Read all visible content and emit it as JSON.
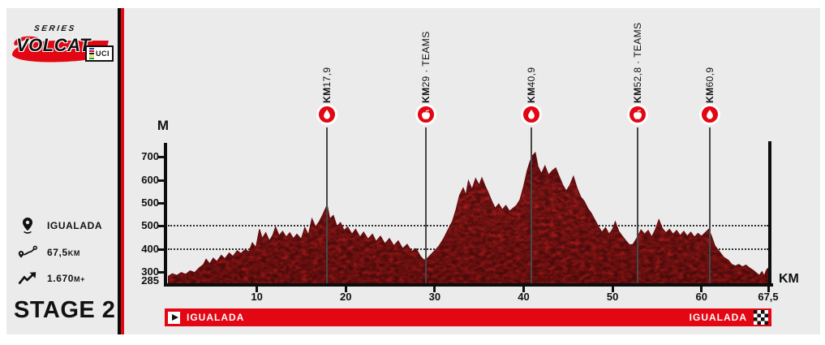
{
  "logo": {
    "series": "SERIES",
    "name": "VOLCAT",
    "uci": "UCI",
    "uci_stripe_colors": [
      "#1d4f9f",
      "#e3001b",
      "#111111",
      "#ffd500",
      "#189b4a"
    ]
  },
  "sidebar": {
    "stats": [
      {
        "icon": "location-pin-icon",
        "value": "IGUALADA",
        "unit": ""
      },
      {
        "icon": "route-distance-icon",
        "value": "67,5",
        "unit": "KM"
      },
      {
        "icon": "elevation-gain-icon",
        "value": "1.670",
        "unit": "M+"
      }
    ],
    "stage_label": "STAGE 2"
  },
  "chart_data": {
    "type": "area",
    "title": "VOLCAT Series Stage 2 road elevation profile",
    "xlabel": "KM",
    "ylabel": "M",
    "x_range": [
      0,
      67.5
    ],
    "x_ticks": [
      10,
      20,
      30,
      40,
      50,
      60,
      67.5
    ],
    "x_tick_labels": [
      "10",
      "20",
      "30",
      "40",
      "50",
      "60",
      "67,5"
    ],
    "y_tick_labels": [
      "700",
      "600",
      "500",
      "500",
      "400",
      "300"
    ],
    "y_base_label": "285",
    "dotted_gridline_label_indices": [
      3,
      4
    ],
    "grid": "two dotted horizontal reference lines",
    "legend": "none",
    "area_color": "#a81c1c",
    "marker_color": "#e30613",
    "markers": [
      {
        "km": 17.9,
        "label_bold": "KM",
        "label_rest": "17,9",
        "icon": "water-drop-icon"
      },
      {
        "km": 29,
        "label_bold": "KM",
        "label_rest": "29 · TEAMS",
        "icon": "apple-icon"
      },
      {
        "km": 40.9,
        "label_bold": "KM",
        "label_rest": "40,9",
        "icon": "water-drop-icon"
      },
      {
        "km": 52.8,
        "label_bold": "KM",
        "label_rest": "52,8 · TEAMS",
        "icon": "apple-icon"
      },
      {
        "km": 60.9,
        "label_bold": "KM",
        "label_rest": "60,9",
        "icon": "water-drop-icon"
      }
    ],
    "series": [
      {
        "name": "elevation_m_by_km",
        "points": [
          [
            0,
            308
          ],
          [
            0.5,
            318
          ],
          [
            1,
            312
          ],
          [
            1.5,
            322
          ],
          [
            2,
            316
          ],
          [
            2.5,
            328
          ],
          [
            3,
            322
          ],
          [
            3.5,
            338
          ],
          [
            4,
            350
          ],
          [
            4.3,
            368
          ],
          [
            4.7,
            352
          ],
          [
            5.1,
            372
          ],
          [
            5.5,
            360
          ],
          [
            6,
            382
          ],
          [
            6.4,
            370
          ],
          [
            6.9,
            390
          ],
          [
            7.3,
            378
          ],
          [
            7.8,
            398
          ],
          [
            8.2,
            388
          ],
          [
            8.7,
            402
          ],
          [
            9.1,
            394
          ],
          [
            9.5,
            425
          ],
          [
            9.9,
            408
          ],
          [
            10.3,
            472
          ],
          [
            10.6,
            440
          ],
          [
            11,
            460
          ],
          [
            11.4,
            432
          ],
          [
            11.8,
            452
          ],
          [
            12.1,
            480
          ],
          [
            12.5,
            450
          ],
          [
            12.9,
            465
          ],
          [
            13.3,
            445
          ],
          [
            13.7,
            460
          ],
          [
            14.1,
            440
          ],
          [
            14.5,
            455
          ],
          [
            15,
            438
          ],
          [
            15.4,
            478
          ],
          [
            15.8,
            452
          ],
          [
            16.2,
            508
          ],
          [
            16.6,
            480
          ],
          [
            17,
            498
          ],
          [
            17.4,
            522
          ],
          [
            17.9,
            556
          ],
          [
            18.2,
            508
          ],
          [
            18.6,
            520
          ],
          [
            19,
            482
          ],
          [
            19.4,
            495
          ],
          [
            19.8,
            468
          ],
          [
            20.2,
            480
          ],
          [
            20.7,
            455
          ],
          [
            21.1,
            472
          ],
          [
            21.6,
            445
          ],
          [
            22,
            462
          ],
          [
            22.5,
            438
          ],
          [
            23,
            455
          ],
          [
            23.4,
            430
          ],
          [
            23.9,
            448
          ],
          [
            24.4,
            422
          ],
          [
            24.9,
            440
          ],
          [
            25.4,
            415
          ],
          [
            25.9,
            432
          ],
          [
            26.4,
            405
          ],
          [
            26.9,
            420
          ],
          [
            27.4,
            395
          ],
          [
            27.9,
            405
          ],
          [
            28.4,
            378
          ],
          [
            28.8,
            365
          ],
          [
            29.2,
            372
          ],
          [
            29.6,
            385
          ],
          [
            30,
            398
          ],
          [
            30.5,
            415
          ],
          [
            31,
            440
          ],
          [
            31.5,
            470
          ],
          [
            32,
            500
          ],
          [
            32.4,
            540
          ],
          [
            32.8,
            590
          ],
          [
            33.2,
            615
          ],
          [
            33.5,
            590
          ],
          [
            33.8,
            640
          ],
          [
            34.2,
            610
          ],
          [
            34.6,
            648
          ],
          [
            35,
            625
          ],
          [
            35.3,
            650
          ],
          [
            35.7,
            620
          ],
          [
            36,
            600
          ],
          [
            36.4,
            570
          ],
          [
            36.8,
            545
          ],
          [
            37.2,
            560
          ],
          [
            37.6,
            540
          ],
          [
            38,
            555
          ],
          [
            38.4,
            535
          ],
          [
            38.8,
            545
          ],
          [
            39.2,
            555
          ],
          [
            39.6,
            575
          ],
          [
            40,
            620
          ],
          [
            40.4,
            675
          ],
          [
            40.7,
            705
          ],
          [
            41,
            728
          ],
          [
            41.3,
            738
          ],
          [
            41.6,
            690
          ],
          [
            42,
            665
          ],
          [
            42.4,
            692
          ],
          [
            42.8,
            660
          ],
          [
            43.2,
            675
          ],
          [
            43.6,
            685
          ],
          [
            44,
            655
          ],
          [
            44.4,
            625
          ],
          [
            44.8,
            605
          ],
          [
            45.2,
            625
          ],
          [
            45.6,
            655
          ],
          [
            46,
            615
          ],
          [
            46.4,
            585
          ],
          [
            46.8,
            570
          ],
          [
            47.2,
            545
          ],
          [
            47.6,
            528
          ],
          [
            48,
            505
          ],
          [
            48.4,
            482
          ],
          [
            48.8,
            462
          ],
          [
            49.2,
            478
          ],
          [
            49.6,
            455
          ],
          [
            50,
            472
          ],
          [
            50.3,
            498
          ],
          [
            50.7,
            465
          ],
          [
            51.1,
            448
          ],
          [
            51.5,
            432
          ],
          [
            51.9,
            418
          ],
          [
            52.3,
            420
          ],
          [
            52.8,
            445
          ],
          [
            53.2,
            470
          ],
          [
            53.6,
            455
          ],
          [
            54,
            468
          ],
          [
            54.4,
            445
          ],
          [
            54.8,
            470
          ],
          [
            55.2,
            505
          ],
          [
            55.6,
            475
          ],
          [
            56,
            460
          ],
          [
            56.4,
            472
          ],
          [
            56.8,
            455
          ],
          [
            57.2,
            468
          ],
          [
            57.6,
            450
          ],
          [
            58,
            465
          ],
          [
            58.4,
            448
          ],
          [
            58.8,
            462
          ],
          [
            59.2,
            445
          ],
          [
            59.6,
            458
          ],
          [
            60,
            448
          ],
          [
            60.4,
            460
          ],
          [
            60.8,
            472
          ],
          [
            61.1,
            450
          ],
          [
            61.5,
            415
          ],
          [
            62,
            395
          ],
          [
            62.5,
            375
          ],
          [
            63,
            365
          ],
          [
            63.4,
            350
          ],
          [
            63.8,
            345
          ],
          [
            64.2,
            350
          ],
          [
            64.6,
            342
          ],
          [
            65,
            348
          ],
          [
            65.4,
            338
          ],
          [
            65.8,
            330
          ],
          [
            66.2,
            320
          ],
          [
            66.5,
            312
          ],
          [
            66.8,
            325
          ],
          [
            67.05,
            310
          ],
          [
            67.3,
            330
          ],
          [
            67.5,
            338
          ]
        ]
      }
    ]
  },
  "route_bar": {
    "start": "IGUALADA",
    "finish": "IGUALADA",
    "start_icon": "play-icon",
    "finish_icon": "checkered-flag-icon",
    "color": "#e30613"
  },
  "colors": {
    "panel_bg": "#ebebeb",
    "accent_red": "#e30613",
    "profile_red": "#a81c1c",
    "ink": "#111111"
  }
}
